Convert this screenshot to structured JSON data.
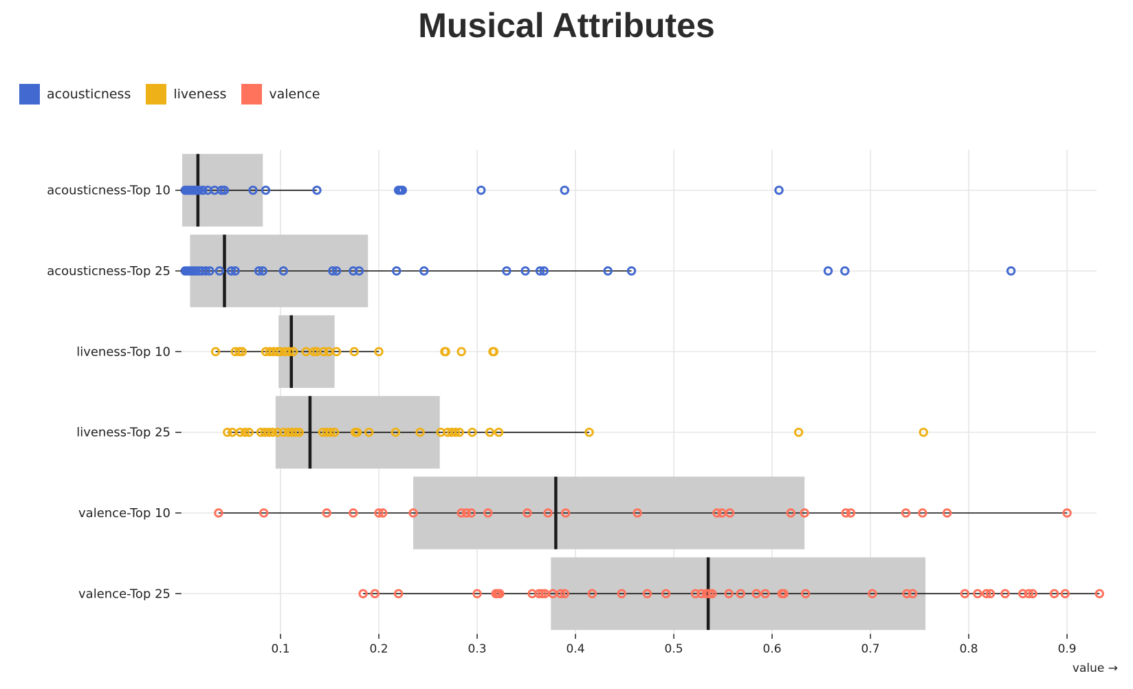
{
  "title": "Musical Attributes",
  "legend": [
    {
      "label": "acousticness",
      "color": "#4269d0"
    },
    {
      "label": "liveness",
      "color": "#efb118"
    },
    {
      "label": "valence",
      "color": "#ff725c"
    }
  ],
  "chart_data": {
    "type": "boxplot",
    "title": "Musical Attributes",
    "xlabel": "value →",
    "ylabel": "",
    "xlim": [
      0.0,
      0.93
    ],
    "xticks": [
      "0.1",
      "0.2",
      "0.3",
      "0.4",
      "0.5",
      "0.6",
      "0.7",
      "0.8",
      "0.9"
    ],
    "xtick_values": [
      0.1,
      0.2,
      0.3,
      0.4,
      0.5,
      0.6,
      0.7,
      0.8,
      0.9
    ],
    "grid": true,
    "legend_position": "top-left",
    "series": [
      {
        "name": "acousticness-Top 10",
        "group": "acousticness",
        "color": "#4269d0",
        "box": {
          "q1": 0.0,
          "median": 0.016,
          "q3": 0.082
        },
        "whisker": [
          0.0,
          0.137
        ],
        "points": [
          0.003,
          0.005,
          0.007,
          0.009,
          0.011,
          0.013,
          0.015,
          0.017,
          0.021,
          0.026,
          0.033,
          0.04,
          0.043,
          0.072,
          0.085,
          0.137,
          0.22,
          0.222,
          0.224,
          0.304,
          0.389,
          0.607
        ]
      },
      {
        "name": "acousticness-Top 25",
        "group": "acousticness",
        "color": "#4269d0",
        "box": {
          "q1": 0.008,
          "median": 0.043,
          "q3": 0.189
        },
        "whisker": [
          0.0,
          0.457
        ],
        "points": [
          0.003,
          0.005,
          0.007,
          0.009,
          0.011,
          0.014,
          0.017,
          0.02,
          0.024,
          0.028,
          0.038,
          0.05,
          0.054,
          0.078,
          0.082,
          0.103,
          0.153,
          0.157,
          0.174,
          0.18,
          0.218,
          0.246,
          0.33,
          0.349,
          0.364,
          0.368,
          0.433,
          0.457,
          0.657,
          0.674,
          0.843
        ]
      },
      {
        "name": "liveness-Top 10",
        "group": "liveness",
        "color": "#efb118",
        "box": {
          "q1": 0.098,
          "median": 0.111,
          "q3": 0.155
        },
        "whisker": [
          0.034,
          0.2
        ],
        "points": [
          0.034,
          0.054,
          0.058,
          0.061,
          0.085,
          0.089,
          0.093,
          0.097,
          0.1,
          0.105,
          0.109,
          0.113,
          0.126,
          0.134,
          0.137,
          0.144,
          0.149,
          0.157,
          0.175,
          0.2,
          0.267,
          0.268,
          0.284,
          0.316,
          0.317
        ]
      },
      {
        "name": "liveness-Top 25",
        "group": "liveness",
        "color": "#efb118",
        "box": {
          "q1": 0.095,
          "median": 0.13,
          "q3": 0.262
        },
        "whisker": [
          0.046,
          0.414
        ],
        "points": [
          0.046,
          0.051,
          0.059,
          0.064,
          0.068,
          0.08,
          0.084,
          0.088,
          0.092,
          0.097,
          0.103,
          0.108,
          0.112,
          0.116,
          0.119,
          0.143,
          0.147,
          0.151,
          0.155,
          0.176,
          0.178,
          0.19,
          0.217,
          0.242,
          0.263,
          0.27,
          0.274,
          0.278,
          0.282,
          0.295,
          0.313,
          0.322,
          0.414,
          0.627,
          0.754
        ]
      },
      {
        "name": "valence-Top 10",
        "group": "valence",
        "color": "#ff725c",
        "box": {
          "q1": 0.235,
          "median": 0.38,
          "q3": 0.633
        },
        "whisker": [
          0.037,
          0.9
        ],
        "points": [
          0.037,
          0.083,
          0.147,
          0.174,
          0.2,
          0.204,
          0.235,
          0.284,
          0.289,
          0.294,
          0.311,
          0.351,
          0.372,
          0.39,
          0.463,
          0.544,
          0.549,
          0.557,
          0.619,
          0.633,
          0.675,
          0.68,
          0.736,
          0.753,
          0.778,
          0.9
        ]
      },
      {
        "name": "valence-Top 25",
        "group": "valence",
        "color": "#ff725c",
        "box": {
          "q1": 0.375,
          "median": 0.535,
          "q3": 0.756
        },
        "whisker": [
          0.184,
          0.933
        ],
        "points": [
          0.184,
          0.196,
          0.22,
          0.3,
          0.319,
          0.321,
          0.323,
          0.356,
          0.363,
          0.366,
          0.369,
          0.377,
          0.385,
          0.389,
          0.417,
          0.447,
          0.473,
          0.492,
          0.522,
          0.528,
          0.533,
          0.536,
          0.539,
          0.556,
          0.568,
          0.584,
          0.593,
          0.61,
          0.612,
          0.634,
          0.702,
          0.737,
          0.743,
          0.796,
          0.809,
          0.818,
          0.822,
          0.837,
          0.855,
          0.861,
          0.865,
          0.887,
          0.898,
          0.933
        ]
      }
    ]
  }
}
